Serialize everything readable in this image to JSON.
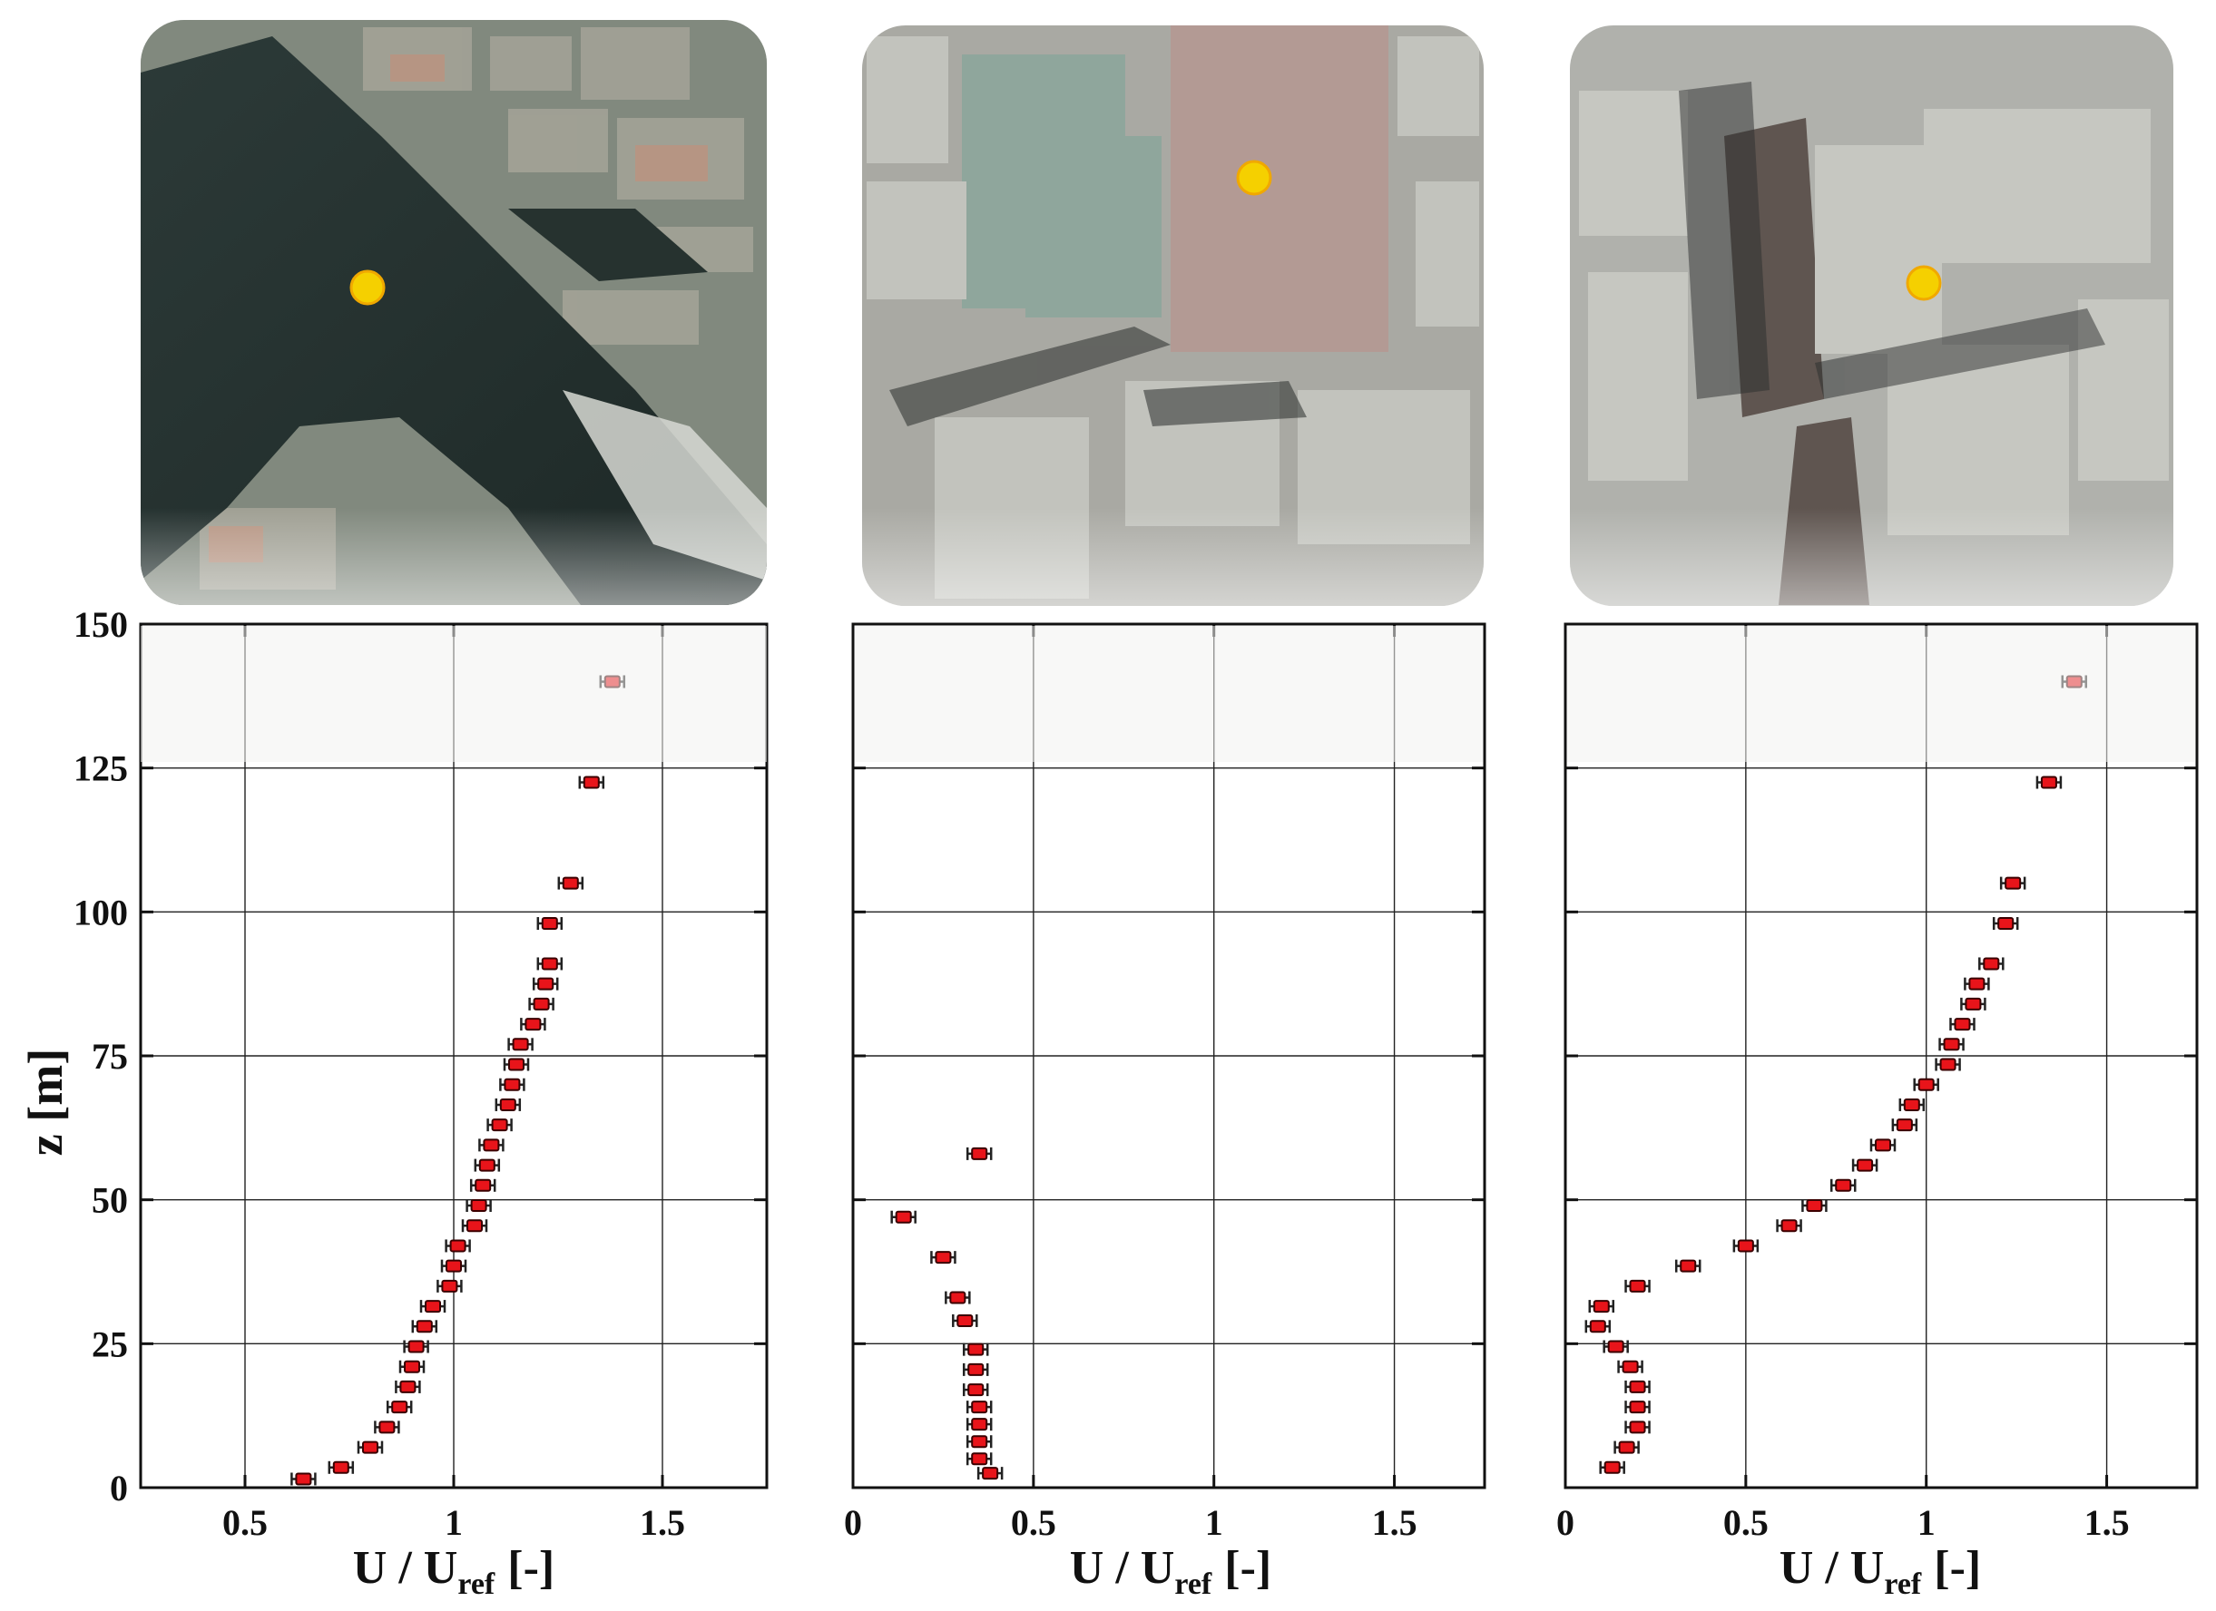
{
  "chart_data": [
    {
      "type": "scatter",
      "panel": "harbor",
      "map_thumbnail": "aerial-photo-harbor",
      "location_marker_color": "#f5d000",
      "marker_color": "#e8141a",
      "xlabel_main": "U / U",
      "xlabel_sub": "ref",
      "xlabel_unit": "[-]",
      "ylabel": "z [m]",
      "xlim": [
        0.25,
        1.75
      ],
      "ylim": [
        0,
        150
      ],
      "xticks": [
        "0.5",
        "1",
        "1.5"
      ],
      "xtick_values": [
        0.5,
        1.0,
        1.5
      ],
      "yticks": [
        "0",
        "25",
        "50",
        "75",
        "100",
        "125",
        "150"
      ],
      "ytick_values": [
        0,
        25,
        50,
        75,
        100,
        125,
        150
      ],
      "show_yticklabels": true,
      "grid": true,
      "points": [
        {
          "x": 0.64,
          "y": 1.5
        },
        {
          "x": 0.73,
          "y": 3.5
        },
        {
          "x": 0.8,
          "y": 7.0
        },
        {
          "x": 0.84,
          "y": 10.5
        },
        {
          "x": 0.87,
          "y": 14.0
        },
        {
          "x": 0.89,
          "y": 17.5
        },
        {
          "x": 0.9,
          "y": 21.0
        },
        {
          "x": 0.91,
          "y": 24.5
        },
        {
          "x": 0.93,
          "y": 28.0
        },
        {
          "x": 0.95,
          "y": 31.5
        },
        {
          "x": 0.99,
          "y": 35.0
        },
        {
          "x": 1.0,
          "y": 38.5
        },
        {
          "x": 1.01,
          "y": 42.0
        },
        {
          "x": 1.05,
          "y": 45.5
        },
        {
          "x": 1.06,
          "y": 49.0
        },
        {
          "x": 1.07,
          "y": 52.5
        },
        {
          "x": 1.08,
          "y": 56.0
        },
        {
          "x": 1.09,
          "y": 59.5
        },
        {
          "x": 1.11,
          "y": 63.0
        },
        {
          "x": 1.13,
          "y": 66.5
        },
        {
          "x": 1.14,
          "y": 70.0
        },
        {
          "x": 1.15,
          "y": 73.5
        },
        {
          "x": 1.16,
          "y": 77.0
        },
        {
          "x": 1.19,
          "y": 80.5
        },
        {
          "x": 1.21,
          "y": 84.0
        },
        {
          "x": 1.22,
          "y": 87.5
        },
        {
          "x": 1.23,
          "y": 91.0
        },
        {
          "x": 1.23,
          "y": 98.0
        },
        {
          "x": 1.28,
          "y": 105.0
        },
        {
          "x": 1.33,
          "y": 122.5
        },
        {
          "x": 1.38,
          "y": 140.0
        }
      ]
    },
    {
      "type": "scatter",
      "panel": "square",
      "map_thumbnail": "aerial-photo-town-square",
      "location_marker_color": "#f5d000",
      "marker_color": "#e8141a",
      "xlabel_main": "U / U",
      "xlabel_sub": "ref",
      "xlabel_unit": "[-]",
      "ylabel": "",
      "xlim": [
        0,
        1.75
      ],
      "ylim": [
        0,
        150
      ],
      "xticks": [
        "0",
        "0.5",
        "1",
        "1.5"
      ],
      "xtick_values": [
        0,
        0.5,
        1.0,
        1.5
      ],
      "yticks": [],
      "ytick_values": [
        25,
        50,
        75,
        100,
        125
      ],
      "show_yticklabels": false,
      "grid": true,
      "points": [
        {
          "x": 0.38,
          "y": 2.5
        },
        {
          "x": 0.35,
          "y": 5.0
        },
        {
          "x": 0.35,
          "y": 8.0
        },
        {
          "x": 0.35,
          "y": 11.0
        },
        {
          "x": 0.35,
          "y": 14.0
        },
        {
          "x": 0.34,
          "y": 17.0
        },
        {
          "x": 0.34,
          "y": 20.5
        },
        {
          "x": 0.34,
          "y": 24.0
        },
        {
          "x": 0.31,
          "y": 29.0
        },
        {
          "x": 0.29,
          "y": 33.0
        },
        {
          "x": 0.25,
          "y": 40.0
        },
        {
          "x": 0.14,
          "y": 47.0
        },
        {
          "x": 0.35,
          "y": 58.0
        }
      ]
    },
    {
      "type": "scatter",
      "panel": "street",
      "map_thumbnail": "aerial-photo-street-canyon",
      "location_marker_color": "#f5d000",
      "marker_color": "#e8141a",
      "xlabel_main": "U / U",
      "xlabel_sub": "ref",
      "xlabel_unit": "[-]",
      "ylabel": "",
      "xlim": [
        0,
        1.75
      ],
      "ylim": [
        0,
        150
      ],
      "xticks": [
        "0",
        "0.5",
        "1",
        "1.5"
      ],
      "xtick_values": [
        0,
        0.5,
        1.0,
        1.5
      ],
      "yticks": [],
      "ytick_values": [
        25,
        50,
        75,
        100,
        125
      ],
      "show_yticklabels": false,
      "grid": true,
      "points": [
        {
          "x": 0.13,
          "y": 3.5
        },
        {
          "x": 0.17,
          "y": 7.0
        },
        {
          "x": 0.2,
          "y": 10.5
        },
        {
          "x": 0.2,
          "y": 14.0
        },
        {
          "x": 0.2,
          "y": 17.5
        },
        {
          "x": 0.18,
          "y": 21.0
        },
        {
          "x": 0.14,
          "y": 24.5
        },
        {
          "x": 0.09,
          "y": 28.0
        },
        {
          "x": 0.1,
          "y": 31.5
        },
        {
          "x": 0.2,
          "y": 35.0
        },
        {
          "x": 0.34,
          "y": 38.5
        },
        {
          "x": 0.5,
          "y": 42.0
        },
        {
          "x": 0.62,
          "y": 45.5
        },
        {
          "x": 0.69,
          "y": 49.0
        },
        {
          "x": 0.77,
          "y": 52.5
        },
        {
          "x": 0.83,
          "y": 56.0
        },
        {
          "x": 0.88,
          "y": 59.5
        },
        {
          "x": 0.94,
          "y": 63.0
        },
        {
          "x": 0.96,
          "y": 66.5
        },
        {
          "x": 1.0,
          "y": 70.0
        },
        {
          "x": 1.06,
          "y": 73.5
        },
        {
          "x": 1.07,
          "y": 77.0
        },
        {
          "x": 1.1,
          "y": 80.5
        },
        {
          "x": 1.13,
          "y": 84.0
        },
        {
          "x": 1.14,
          "y": 87.5
        },
        {
          "x": 1.18,
          "y": 91.0
        },
        {
          "x": 1.22,
          "y": 98.0
        },
        {
          "x": 1.24,
          "y": 105.0
        },
        {
          "x": 1.34,
          "y": 122.5
        },
        {
          "x": 1.41,
          "y": 140.0
        }
      ]
    }
  ]
}
